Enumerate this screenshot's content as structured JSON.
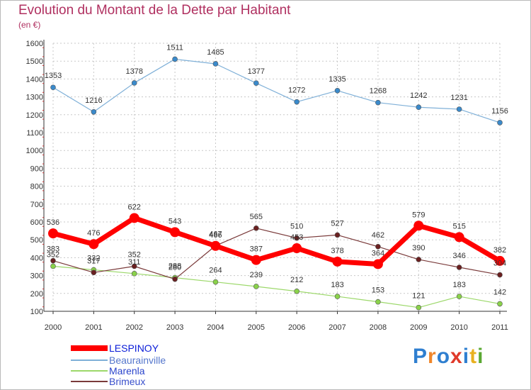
{
  "header": {
    "title": "Evolution du Montant de la Dette par Habitant",
    "unit": "(en €)"
  },
  "logo": {
    "text": "Proxiti",
    "colors": [
      "#2f7fd0",
      "#f0862a",
      "#2f7fd0",
      "#e03a2a",
      "#2f7fd0",
      "#e8b020",
      "#5aa832"
    ]
  },
  "colors": {
    "title": "#b03060",
    "grid": "#c8c8c8",
    "axis": "#333333"
  },
  "chart_data": {
    "type": "line",
    "title": "Evolution du Montant de la Dette par Habitant",
    "ylabel": "(en €)",
    "x": [
      "2000",
      "2001",
      "2002",
      "2003",
      "2004",
      "2005",
      "2006",
      "2007",
      "2008",
      "2009",
      "2010",
      "2011"
    ],
    "ylim": [
      100,
      1600
    ],
    "yticks": [
      100,
      200,
      300,
      400,
      500,
      600,
      700,
      800,
      900,
      1000,
      1100,
      1200,
      1300,
      1400,
      1500,
      1600
    ],
    "grid": true,
    "legend_position": "bottom-left",
    "series": [
      {
        "name": "LESPINOY",
        "color": "#ff0000",
        "emphasis": true,
        "values": [
          536,
          476,
          622,
          543,
          466,
          387,
          453,
          378,
          364,
          579,
          515,
          382
        ],
        "labels": [
          "536",
          "476",
          "622",
          "543",
          "466",
          "387",
          "453",
          "378",
          "364",
          "579",
          "515",
          "382"
        ]
      },
      {
        "name": "Beaurainville",
        "color": "#7fb0d8",
        "marker": "#3a8acb",
        "values": [
          1353,
          1216,
          1378,
          1511,
          1485,
          1377,
          1272,
          1335,
          1268,
          1242,
          1231,
          1156
        ],
        "labels": [
          "1353",
          "1216",
          "1378",
          "1511",
          "1485",
          "1377",
          "1272",
          "1335",
          "1268",
          "1242",
          "1231",
          "1156"
        ]
      },
      {
        "name": "Marenla",
        "color": "#9cd86a",
        "marker": "#8ad24a",
        "values": [
          352,
          332,
          311,
          288,
          264,
          239,
          212,
          183,
          153,
          121,
          183,
          142
        ],
        "labels": [
          "352",
          "332",
          "311",
          "288",
          "264",
          "239",
          "212",
          "183",
          "153",
          "121",
          "183",
          "142"
        ]
      },
      {
        "name": "Brimeux",
        "color": "#7a3a3a",
        "marker": "#6a2020",
        "values": [
          383,
          317,
          352,
          280,
          467,
          565,
          510,
          527,
          462,
          390,
          346,
          304
        ],
        "labels": [
          "383",
          "317",
          "352",
          "280",
          "467",
          "565",
          "510",
          "527",
          "462",
          "390",
          "346",
          "304"
        ]
      }
    ]
  }
}
